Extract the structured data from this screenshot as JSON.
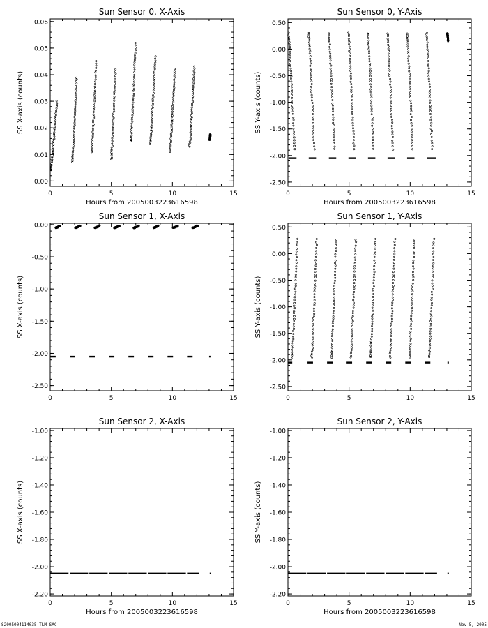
{
  "footer": {
    "left": "S2005004114035.TLM_SAC",
    "right": "Nov  5, 2005"
  },
  "chart_data": [
    {
      "type": "scatter",
      "title": "Sun Sensor 0, X-Axis",
      "xlabel": "Hours from 2005003223616598",
      "ylabel": "SS X-axis (counts)",
      "xlim": [
        0,
        15
      ],
      "ylim": [
        -0.002,
        0.061
      ],
      "xticks": [
        0,
        5,
        10,
        15
      ],
      "xtick_labels": [
        "0",
        "5",
        "10",
        "15"
      ],
      "yticks": [
        0.0,
        0.01,
        0.02,
        0.03,
        0.04,
        0.05,
        0.06
      ],
      "ytick_labels": [
        "0.00",
        "0.01",
        "0.02",
        "0.03",
        "0.04",
        "0.05",
        "0.06"
      ],
      "grid": false,
      "segments": [
        {
          "x": [
            0.05,
            0.55
          ],
          "y": [
            0.004,
            0.03
          ]
        },
        {
          "x": [
            1.8,
            2.15
          ],
          "y": [
            0.007,
            0.039
          ]
        },
        {
          "x": [
            3.4,
            3.75
          ],
          "y": [
            0.011,
            0.045
          ]
        },
        {
          "x": [
            5.0,
            5.35
          ],
          "y": [
            0.008,
            0.042
          ]
        },
        {
          "x": [
            6.6,
            7.0
          ],
          "y": [
            0.015,
            0.052
          ]
        },
        {
          "x": [
            8.2,
            8.6
          ],
          "y": [
            0.014,
            0.047
          ]
        },
        {
          "x": [
            9.8,
            10.2
          ],
          "y": [
            0.011,
            0.042
          ]
        },
        {
          "x": [
            11.4,
            11.8
          ],
          "y": [
            0.013,
            0.043
          ]
        },
        {
          "x": [
            13.05,
            13.1
          ],
          "y": [
            0.0155,
            0.0175
          ]
        }
      ]
    },
    {
      "type": "scatter",
      "title": "Sun Sensor 0, Y-Axis",
      "xlabel": "Hours from 2005003223616598",
      "ylabel": "SS Y-axis (counts)",
      "xlim": [
        0,
        15
      ],
      "ylim": [
        -2.58,
        0.57
      ],
      "xticks": [
        0,
        5,
        10,
        15
      ],
      "xtick_labels": [
        "0",
        "5",
        "10",
        "15"
      ],
      "yticks": [
        0.5,
        0.0,
        -0.5,
        -1.0,
        -1.5,
        -2.0,
        -2.5
      ],
      "ytick_labels": [
        "0.50",
        "0.00",
        "-0.50",
        "-1.00",
        "-1.50",
        "-2.00",
        "-2.50"
      ],
      "grid": false,
      "segments": [
        {
          "x": [
            0.05,
            0.55
          ],
          "y": [
            0.3,
            -1.88
          ]
        },
        {
          "x": [
            1.7,
            2.15
          ],
          "y": [
            0.3,
            -1.88
          ]
        },
        {
          "x": [
            3.35,
            3.8
          ],
          "y": [
            0.3,
            -1.88
          ]
        },
        {
          "x": [
            4.95,
            5.4
          ],
          "y": [
            0.3,
            -1.88
          ]
        },
        {
          "x": [
            6.55,
            7.0
          ],
          "y": [
            0.3,
            -1.88
          ]
        },
        {
          "x": [
            8.15,
            8.6
          ],
          "y": [
            0.3,
            -1.88
          ]
        },
        {
          "x": [
            9.75,
            10.2
          ],
          "y": [
            0.3,
            -1.88
          ]
        },
        {
          "x": [
            11.35,
            11.8
          ],
          "y": [
            0.3,
            -1.88
          ]
        },
        {
          "x": [
            13.05,
            13.1
          ],
          "y": [
            0.3,
            0.15
          ]
        }
      ],
      "baseline": {
        "y": -2.05,
        "ranges": [
          [
            0.05,
            0.7
          ],
          [
            1.7,
            2.3
          ],
          [
            3.35,
            3.95
          ],
          [
            4.95,
            5.55
          ],
          [
            6.55,
            7.15
          ],
          [
            8.15,
            8.75
          ],
          [
            9.75,
            10.35
          ],
          [
            11.35,
            12.1
          ]
        ]
      }
    },
    {
      "type": "scatter",
      "title": "Sun Sensor 1, X-Axis",
      "xlabel": "",
      "ylabel": "SS X-axis (counts)",
      "xlim": [
        0,
        15
      ],
      "ylim": [
        -2.58,
        0.02
      ],
      "xticks": [
        0,
        5,
        10,
        15
      ],
      "xtick_labels": [
        "0",
        "5",
        "10",
        "15"
      ],
      "yticks": [
        0.0,
        -0.5,
        -1.0,
        -1.5,
        -2.0,
        -2.5
      ],
      "ytick_labels": [
        "0.00",
        "-0.50",
        "-1.00",
        "-1.50",
        "-2.00",
        "-2.50"
      ],
      "grid": false,
      "segments": [
        {
          "x": [
            0.45,
            0.8
          ],
          "y": [
            -0.05,
            -0.02
          ]
        },
        {
          "x": [
            2.05,
            2.45
          ],
          "y": [
            -0.05,
            -0.02
          ]
        },
        {
          "x": [
            3.65,
            4.05
          ],
          "y": [
            -0.05,
            -0.02
          ]
        },
        {
          "x": [
            5.25,
            5.65
          ],
          "y": [
            -0.05,
            -0.02
          ]
        },
        {
          "x": [
            6.85,
            7.25
          ],
          "y": [
            -0.05,
            -0.02
          ]
        },
        {
          "x": [
            8.45,
            8.85
          ],
          "y": [
            -0.05,
            -0.02
          ]
        },
        {
          "x": [
            10.05,
            10.45
          ],
          "y": [
            -0.05,
            -0.02
          ]
        },
        {
          "x": [
            11.65,
            12.05
          ],
          "y": [
            -0.05,
            -0.02
          ]
        }
      ],
      "baseline": {
        "y": -2.05,
        "ranges": [
          [
            0.0,
            0.45
          ],
          [
            1.6,
            2.05
          ],
          [
            3.2,
            3.65
          ],
          [
            4.8,
            5.25
          ],
          [
            6.4,
            6.85
          ],
          [
            8.0,
            8.45
          ],
          [
            9.6,
            10.05
          ],
          [
            11.2,
            11.65
          ],
          [
            13.0,
            13.1
          ]
        ]
      }
    },
    {
      "type": "scatter",
      "title": "Sun Sensor 1, Y-Axis",
      "xlabel": "",
      "ylabel": "SS Y-axis (counts)",
      "xlim": [
        0,
        15
      ],
      "ylim": [
        -2.58,
        0.57
      ],
      "xticks": [
        0,
        5,
        10,
        15
      ],
      "xtick_labels": [
        "0",
        "5",
        "10",
        "15"
      ],
      "yticks": [
        0.5,
        0.0,
        -0.5,
        -1.0,
        -1.5,
        -2.0,
        -2.5
      ],
      "ytick_labels": [
        "0.50",
        "0.00",
        "-0.50",
        "-1.00",
        "-1.50",
        "-2.00",
        "-2.50"
      ],
      "grid": false,
      "segments": [
        {
          "x": [
            0.35,
            0.75
          ],
          "y": [
            -1.95,
            0.27
          ]
        },
        {
          "x": [
            1.95,
            2.35
          ],
          "y": [
            -1.95,
            0.27
          ]
        },
        {
          "x": [
            3.55,
            3.95
          ],
          "y": [
            -1.95,
            0.27
          ]
        },
        {
          "x": [
            5.15,
            5.55
          ],
          "y": [
            -1.95,
            0.27
          ]
        },
        {
          "x": [
            6.75,
            7.15
          ],
          "y": [
            -1.95,
            0.27
          ]
        },
        {
          "x": [
            8.35,
            8.75
          ],
          "y": [
            -1.95,
            0.27
          ]
        },
        {
          "x": [
            9.95,
            10.35
          ],
          "y": [
            -1.95,
            0.27
          ]
        },
        {
          "x": [
            11.55,
            11.95
          ],
          "y": [
            -1.95,
            0.27
          ]
        }
      ],
      "baseline": {
        "y": -2.05,
        "ranges": [
          [
            0.0,
            0.35
          ],
          [
            1.6,
            2.05
          ],
          [
            3.2,
            3.65
          ],
          [
            4.8,
            5.25
          ],
          [
            6.4,
            6.85
          ],
          [
            8.0,
            8.45
          ],
          [
            9.6,
            10.05
          ],
          [
            11.2,
            11.65
          ],
          [
            13.05,
            13.1
          ]
        ]
      }
    },
    {
      "type": "scatter",
      "title": "Sun Sensor 2, X-Axis",
      "xlabel": "Hours from 2005003223616598",
      "ylabel": "SS X-axis (counts)",
      "xlim": [
        0,
        15
      ],
      "ylim": [
        -2.215,
        -0.985
      ],
      "xticks": [
        0,
        5,
        10,
        15
      ],
      "xtick_labels": [
        "0",
        "5",
        "10",
        "15"
      ],
      "yticks": [
        -1.0,
        -1.2,
        -1.4,
        -1.6,
        -1.8,
        -2.0,
        -2.2
      ],
      "ytick_labels": [
        "-1.00",
        "-1.20",
        "-1.40",
        "-1.60",
        "-1.80",
        "-2.00",
        "-2.20"
      ],
      "grid": false,
      "segments": [],
      "baseline": {
        "y": -2.05,
        "ranges": [
          [
            0.0,
            1.5
          ],
          [
            1.6,
            3.1
          ],
          [
            3.2,
            4.7
          ],
          [
            4.8,
            6.3
          ],
          [
            6.4,
            7.9
          ],
          [
            8.0,
            9.5
          ],
          [
            9.6,
            11.1
          ],
          [
            11.2,
            12.2
          ],
          [
            13.05,
            13.1
          ]
        ]
      }
    },
    {
      "type": "scatter",
      "title": "Sun Sensor 2, Y-Axis",
      "xlabel": "Hours from 2005003223616598",
      "ylabel": "SS Y-axis (counts)",
      "xlim": [
        0,
        15
      ],
      "ylim": [
        -2.215,
        -0.985
      ],
      "xticks": [
        0,
        5,
        10,
        15
      ],
      "xtick_labels": [
        "0",
        "5",
        "10",
        "15"
      ],
      "yticks": [
        -1.0,
        -1.2,
        -1.4,
        -1.6,
        -1.8,
        -2.0,
        -2.2
      ],
      "ytick_labels": [
        "-1.00",
        "-1.20",
        "-1.40",
        "-1.60",
        "-1.80",
        "-2.00",
        "-2.20"
      ],
      "grid": false,
      "segments": [],
      "baseline": {
        "y": -2.05,
        "ranges": [
          [
            0.0,
            1.5
          ],
          [
            1.6,
            3.1
          ],
          [
            3.2,
            4.7
          ],
          [
            4.8,
            6.3
          ],
          [
            6.4,
            7.9
          ],
          [
            8.0,
            9.5
          ],
          [
            9.6,
            11.1
          ],
          [
            11.2,
            12.2
          ],
          [
            13.05,
            13.1
          ]
        ]
      }
    }
  ]
}
